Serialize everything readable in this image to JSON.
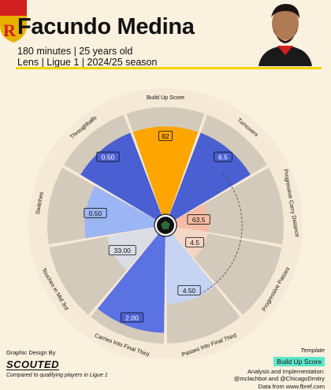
{
  "player": {
    "name": "Facundo Medina",
    "line1": "180 minutes | 25 years old",
    "line2": "Lens | Ligue 1 | 2024/25 season"
  },
  "footer": {
    "design_label": "Graphic Design By",
    "brand": "SCOUTED",
    "compare_note": "Compared to qualifying players in Ligue 1",
    "template_label": "Template",
    "template_name": "Build Up Score",
    "credit_line1": "Analysis and Implementation:",
    "credit_line2": "@mclachbot and @ChicagoDmitry",
    "credit_line3": "Data from www.fbref.com"
  },
  "colors": {
    "background": "#fbf1df",
    "track": "#d4cabb",
    "accent": "#f3d400",
    "badge": "#5ce6c9"
  },
  "chart_data": {
    "type": "radial_bar",
    "scale_max": 100,
    "center_icon": "ball-icon",
    "categories": [
      {
        "label": "Build Up Score",
        "value_label": "82",
        "percentile": 82,
        "color": "#ffa500"
      },
      {
        "label": "Turnovers",
        "value_label": "6.5",
        "percentile": 82,
        "color": "#4a5fd2"
      },
      {
        "label": "Progressive Carry Distance",
        "value_label": "63.5",
        "percentile": 30,
        "color": "#f6bba4"
      },
      {
        "label": "Progressive Passes",
        "value_label": "4.5",
        "percentile": 30,
        "color": "#f3d6c4"
      },
      {
        "label": "Passes Into Final Third",
        "value_label": "4.50",
        "percentile": 63,
        "color": "#c6d3f2"
      },
      {
        "label": "Carries Into Final Third",
        "value_label": "2.00",
        "percentile": 90,
        "color": "#5b72e3"
      },
      {
        "label": "Touches in Mid 3rd",
        "value_label": "33.00",
        "percentile": 45,
        "color": "#dadde6"
      },
      {
        "label": "Switches",
        "value_label": "0.50",
        "percentile": 65,
        "color": "#9bb5f5"
      },
      {
        "label": "Throughballs",
        "value_label": "0.50",
        "percentile": 82,
        "color": "#4a5fd2"
      }
    ],
    "reference_arc_percentile": 45
  }
}
